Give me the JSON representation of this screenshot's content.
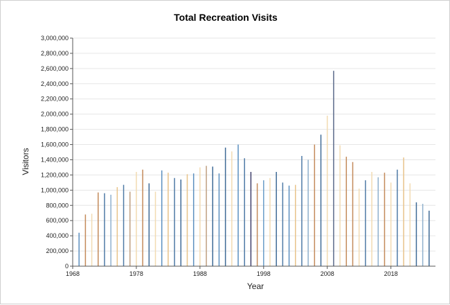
{
  "chart_data": {
    "type": "bar",
    "title": "Total Recreation Visits",
    "xlabel": "Year",
    "ylabel": "Visitors",
    "ylim": [
      0,
      3000000
    ],
    "xlim": [
      1968,
      2025
    ],
    "grid": true,
    "yticks": [
      "0",
      "200,000",
      "400,000",
      "600,000",
      "800,000",
      "1,000,000",
      "1,200,000",
      "1,400,000",
      "1,600,000",
      "1,800,000",
      "2,000,000",
      "2,200,000",
      "2,400,000",
      "2,600,000",
      "2,800,000",
      "3,000,000"
    ],
    "ytick_values": [
      0,
      200000,
      400000,
      600000,
      800000,
      1000000,
      1200000,
      1400000,
      1600000,
      1800000,
      2000000,
      2200000,
      2400000,
      2600000,
      2800000,
      3000000
    ],
    "xticks": [
      "1968",
      "1978",
      "1988",
      "1998",
      "2008",
      "2018"
    ],
    "xtick_values": [
      1968,
      1978,
      1988,
      1998,
      2008,
      2018
    ],
    "x": [
      1969,
      1970,
      1971,
      1972,
      1973,
      1974,
      1975,
      1976,
      1977,
      1978,
      1979,
      1980,
      1981,
      1982,
      1983,
      1984,
      1985,
      1986,
      1987,
      1988,
      1989,
      1990,
      1991,
      1992,
      1993,
      1994,
      1995,
      1996,
      1997,
      1998,
      1999,
      2000,
      2001,
      2002,
      2003,
      2004,
      2005,
      2006,
      2007,
      2008,
      2009,
      2010,
      2011,
      2012,
      2013,
      2014,
      2015,
      2016,
      2017,
      2018,
      2019,
      2020,
      2021,
      2022,
      2023,
      2024
    ],
    "values": [
      440000,
      680000,
      690000,
      970000,
      960000,
      940000,
      1040000,
      1070000,
      980000,
      1240000,
      1270000,
      1090000,
      980000,
      1260000,
      1230000,
      1160000,
      1140000,
      1210000,
      1220000,
      1300000,
      1320000,
      1310000,
      1220000,
      1560000,
      1510000,
      1600000,
      1420000,
      1240000,
      1090000,
      1130000,
      1160000,
      1240000,
      1100000,
      1060000,
      1070000,
      1450000,
      1400000,
      1600000,
      1730000,
      1980000,
      2570000,
      1590000,
      1440000,
      1370000,
      1020000,
      1130000,
      1240000,
      1170000,
      1230000,
      1100000,
      1270000,
      1430000,
      1090000,
      840000,
      820000,
      730000
    ],
    "colors": [
      "#5b8fbf",
      "#c38a5a",
      "#f2dbb2",
      "#c38a5a",
      "#4e7aa6",
      "#8fb0cd",
      "#e8c38a",
      "#4e7aa6",
      "#bfa080",
      "#f2dbb2",
      "#c38a5a",
      "#3e6a96",
      "#f2dbb2",
      "#5b8fbf",
      "#e8c38a",
      "#4e7aa6",
      "#3e6a96",
      "#e8c38a",
      "#5b8fbf",
      "#f2dbb2",
      "#bfa080",
      "#3e6a96",
      "#5b8fbf",
      "#3e6a96",
      "#f2dbb2",
      "#5b8fbf",
      "#4e7aa6",
      "#3e3e6a",
      "#c38a5a",
      "#6a9cc8",
      "#f2dbb2",
      "#3e6a96",
      "#4e7aa6",
      "#5b8fbf",
      "#e8c38a",
      "#4e7aa6",
      "#8fb0cd",
      "#c38a5a",
      "#3e6a96",
      "#f2dbb2",
      "#5a6a8a",
      "#f2dbb2",
      "#c38a5a",
      "#c38a5a",
      "#f2dbb2",
      "#4e7aa6",
      "#f2dbb2",
      "#8fb0cd",
      "#c38a5a",
      "#f2dbb2",
      "#4e7aa6",
      "#e8c38a",
      "#f2dbb2",
      "#3e6a96",
      "#8fb0cd",
      "#3e6a96"
    ]
  }
}
